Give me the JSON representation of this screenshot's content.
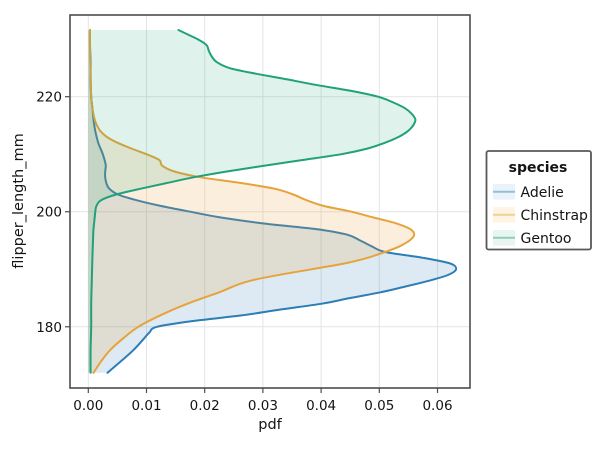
{
  "chart_data": {
    "type": "area",
    "subtype": "kde-density",
    "orientation": "horizontal",
    "title": "",
    "xlabel": "pdf",
    "ylabel": "flipper_length_mm",
    "grid": true,
    "xlim": [
      -0.003,
      0.0655
    ],
    "ylim": [
      169.5,
      234.0
    ],
    "x_axis": {
      "ticks": [
        {
          "value": 0.0,
          "label": "0.00"
        },
        {
          "value": 0.01,
          "label": "0.01"
        },
        {
          "value": 0.02,
          "label": "0.02"
        },
        {
          "value": 0.03,
          "label": "0.03"
        },
        {
          "value": 0.04,
          "label": "0.04"
        },
        {
          "value": 0.05,
          "label": "0.05"
        },
        {
          "value": 0.06,
          "label": "0.06"
        }
      ]
    },
    "y_axis": {
      "ticks": [
        {
          "value": 180,
          "label": "180"
        },
        {
          "value": 200,
          "label": "200"
        },
        {
          "value": 220,
          "label": "220"
        }
      ]
    },
    "legend": {
      "title": "species",
      "position": "right",
      "entries": [
        {
          "label": "Adelie",
          "stroke": "#2d7db6",
          "swatch_fill": "#eaf3fa"
        },
        {
          "label": "Chinstrap",
          "stroke": "#e7a33b",
          "swatch_fill": "#fdf4e4"
        },
        {
          "label": "Gentoo",
          "stroke": "#20a17b",
          "swatch_fill": "#e8f5f0"
        }
      ]
    },
    "colors": {
      "grid": "#e4e4e4",
      "panel_border": "#4d4d4d",
      "tick_mark": "#4d4d4d",
      "legend_border": "#585858",
      "text": "#141414"
    },
    "series": [
      {
        "name": "Adelie",
        "stroke": "#2d7db6",
        "fill_rgba": [
          45,
          125,
          182,
          0.16
        ],
        "peak": {
          "flipper_length_mm": 190,
          "pdf": 0.0632
        },
        "flipper_length_mm": [
          172,
          174,
          176,
          178,
          179,
          180,
          181,
          182,
          183,
          184,
          185,
          186,
          187,
          188,
          189,
          190,
          191,
          192,
          193,
          194,
          195,
          196,
          197,
          198,
          199,
          200,
          201,
          202,
          203,
          204,
          205,
          206,
          207,
          208,
          209,
          210,
          211,
          212,
          214,
          216,
          218,
          220,
          223,
          226,
          229,
          231.6
        ],
        "pdf": [
          0.0033,
          0.0056,
          0.0078,
          0.0096,
          0.0105,
          0.0118,
          0.018,
          0.0265,
          0.033,
          0.04,
          0.045,
          0.0502,
          0.0545,
          0.0585,
          0.0618,
          0.0632,
          0.0622,
          0.0575,
          0.051,
          0.0487,
          0.0467,
          0.0445,
          0.039,
          0.0298,
          0.0228,
          0.0175,
          0.0125,
          0.0083,
          0.0051,
          0.0036,
          0.0031,
          0.0029,
          0.0029,
          0.003,
          0.0028,
          0.0025,
          0.0021,
          0.0017,
          0.0012,
          0.0009,
          0.0007,
          0.0005,
          0.0004,
          0.0004,
          0.0003,
          0.0003
        ]
      },
      {
        "name": "Chinstrap",
        "stroke": "#e7a33b",
        "fill_rgba": [
          231,
          163,
          59,
          0.18
        ],
        "peak": {
          "flipper_length_mm": 196,
          "pdf": 0.056
        },
        "flipper_length_mm": [
          172,
          174,
          176,
          178,
          180,
          182,
          184,
          186,
          188,
          190,
          191,
          192,
          193,
          194,
          195,
          196,
          197,
          198,
          199,
          200,
          201,
          202,
          203,
          204,
          205,
          206,
          207,
          208,
          209,
          210,
          211,
          212,
          213,
          214,
          215,
          216,
          218,
          220,
          224,
          228,
          231.6
        ],
        "pdf": [
          0.0009,
          0.0022,
          0.0038,
          0.006,
          0.0086,
          0.0124,
          0.017,
          0.0225,
          0.0278,
          0.0383,
          0.044,
          0.048,
          0.051,
          0.0535,
          0.0552,
          0.056,
          0.0553,
          0.0528,
          0.049,
          0.0452,
          0.0405,
          0.0375,
          0.0352,
          0.032,
          0.0262,
          0.0192,
          0.0148,
          0.0127,
          0.0122,
          0.01,
          0.0074,
          0.005,
          0.0032,
          0.0021,
          0.0015,
          0.0011,
          0.0007,
          0.0005,
          0.0004,
          0.0003,
          0.0003
        ]
      },
      {
        "name": "Gentoo",
        "stroke": "#20a17b",
        "fill_rgba": [
          32,
          161,
          123,
          0.14
        ],
        "peak": {
          "flipper_length_mm": 216,
          "pdf": 0.0562
        },
        "flipper_length_mm": [
          172,
          176,
          180,
          184,
          188,
          192,
          195,
          197,
          199,
          200,
          201,
          202,
          203,
          204,
          205,
          206,
          207,
          208,
          209,
          210,
          211,
          212,
          213,
          214,
          215,
          216,
          217,
          218,
          219,
          220,
          221,
          222,
          223,
          224,
          225,
          226,
          227,
          228,
          229,
          230,
          231,
          231.6
        ],
        "pdf": [
          0.0004,
          0.0004,
          0.0005,
          0.0005,
          0.0006,
          0.0007,
          0.0008,
          0.0009,
          0.0011,
          0.0012,
          0.0014,
          0.0022,
          0.0048,
          0.009,
          0.0135,
          0.0182,
          0.0238,
          0.0302,
          0.0368,
          0.0435,
          0.048,
          0.051,
          0.0533,
          0.0549,
          0.0558,
          0.0562,
          0.0556,
          0.0544,
          0.0524,
          0.0498,
          0.0452,
          0.0394,
          0.0342,
          0.0288,
          0.0242,
          0.0221,
          0.0212,
          0.0207,
          0.0203,
          0.0188,
          0.0167,
          0.0155
        ]
      }
    ]
  }
}
